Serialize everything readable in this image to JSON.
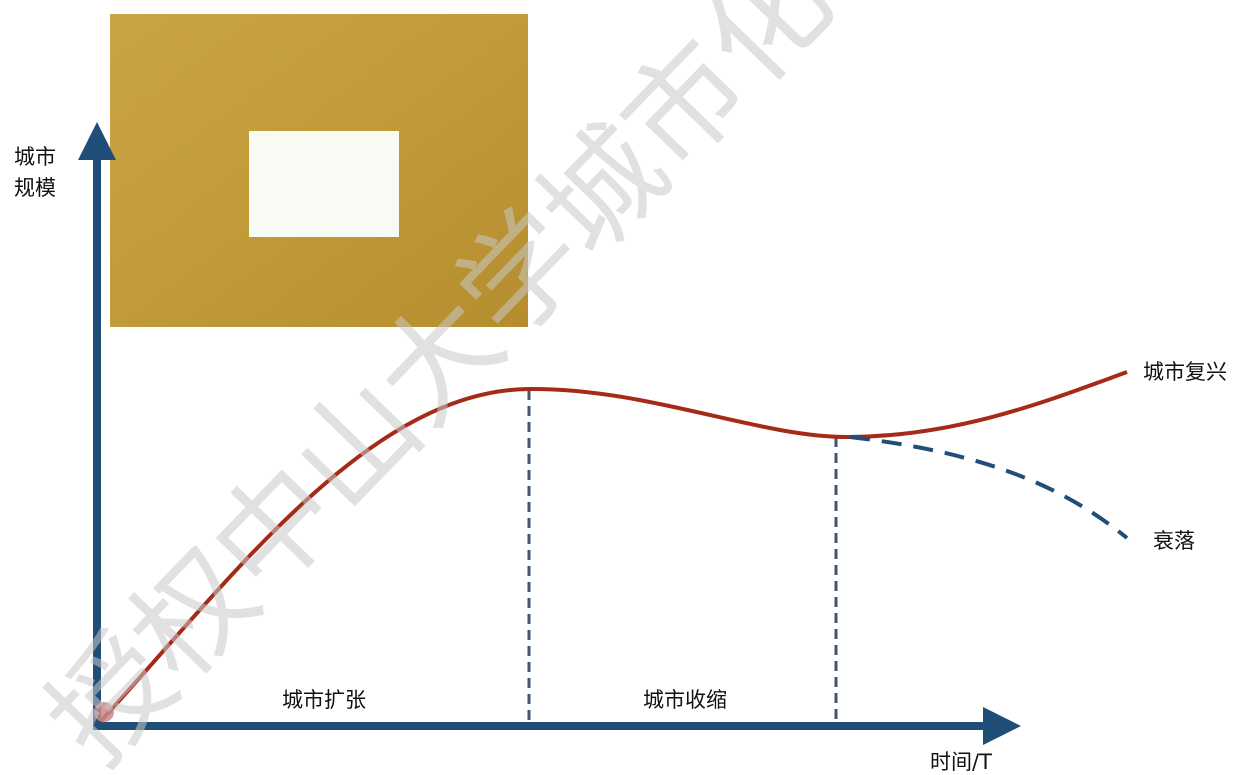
{
  "axes": {
    "y_label_line1": "城市",
    "y_label_line2": "规模",
    "x_label": "时间/T"
  },
  "phases": {
    "expansion": "城市扩张",
    "shrinkage": "城市收缩"
  },
  "outcomes": {
    "revival": "城市复兴",
    "decline": "衰落"
  },
  "watermark": "授权中山大学城市化研",
  "colors": {
    "axis": "#1f4e79",
    "curve": "#a52a18",
    "dashed_branch": "#1f4e79",
    "divider": "#44546a",
    "photo_gold": "#c9a13b",
    "start_dot": "#c98a8a"
  }
}
